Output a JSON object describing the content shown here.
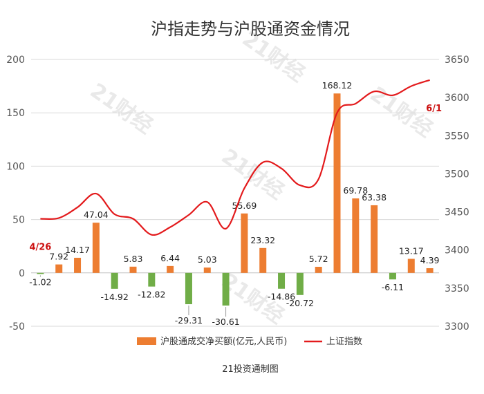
{
  "chart_data": {
    "type": "bar",
    "title": "沪指走势与沪股通资金情况",
    "credit": "21投资通制图",
    "watermark": "21财经",
    "y_left": {
      "min": -50,
      "max": 200,
      "ticks": [
        "200",
        "150",
        "100",
        "50",
        "0",
        "-50"
      ]
    },
    "y_right": {
      "min": 3300,
      "max": 3650,
      "ticks": [
        "3650",
        "3600",
        "3550",
        "3500",
        "3450",
        "3400",
        "3350",
        "3300"
      ]
    },
    "legend_position": "bottom",
    "series": [
      {
        "name": "沪股通成交净买额(亿元,人民币)",
        "type": "bar",
        "axis": "left",
        "positive_color": "#ed7d31",
        "negative_color": "#70ad47",
        "values": [
          -1.02,
          7.92,
          14.17,
          47.04,
          -14.92,
          5.83,
          -12.82,
          6.44,
          -29.31,
          5.03,
          -30.61,
          55.69,
          23.32,
          -14.86,
          -20.72,
          5.72,
          168.12,
          69.78,
          63.38,
          -6.11,
          13.17,
          4.39
        ],
        "labels": [
          "-1.02",
          "7.92",
          "14.17",
          "47.04",
          "-14.92",
          "5.83",
          "-12.82",
          "6.44",
          "-29.31",
          "5.03",
          "-30.61",
          "55.69",
          "23.32",
          "-14.86",
          "-20.72",
          "5.72",
          "168.12",
          "69.78",
          "63.38",
          "-6.11",
          "13.17",
          "4.39"
        ]
      },
      {
        "name": "上证指数",
        "type": "line",
        "axis": "right",
        "color": "#e31a1c",
        "values": [
          3441,
          3442,
          3456,
          3474,
          3447,
          3441,
          3420,
          3430,
          3446,
          3463,
          3428,
          3481,
          3515,
          3507,
          3485,
          3493,
          3580,
          3592,
          3608,
          3603,
          3615,
          3623
        ]
      }
    ],
    "annotations": [
      {
        "text": "4/26",
        "index": 0
      },
      {
        "text": "6/1",
        "index": 21
      }
    ]
  }
}
